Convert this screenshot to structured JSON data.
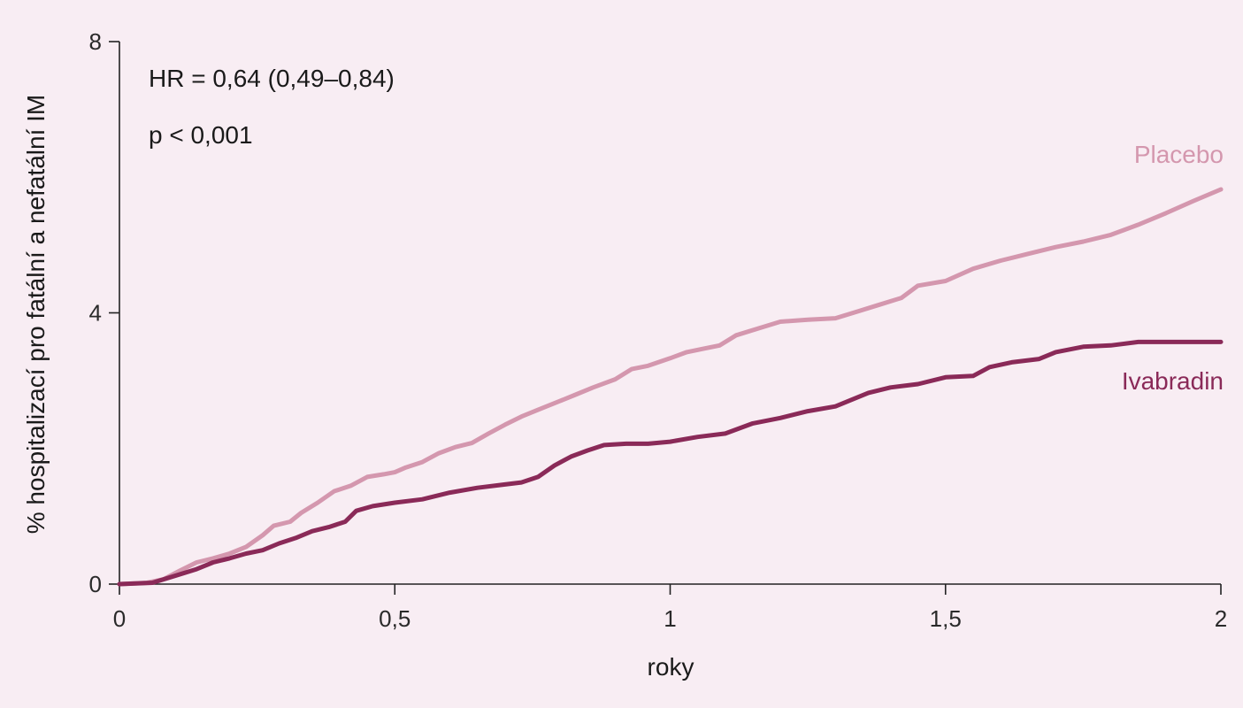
{
  "chart_data": {
    "type": "line",
    "xlabel": "roky",
    "ylabel": "% hospitalizací pro fatální a nefatální IM",
    "xlim": [
      0,
      2
    ],
    "ylim": [
      0,
      8
    ],
    "x_ticks": [
      {
        "value": 0,
        "label": "0"
      },
      {
        "value": 0.5,
        "label": "0,5"
      },
      {
        "value": 1,
        "label": "1"
      },
      {
        "value": 1.5,
        "label": "1,5"
      },
      {
        "value": 2,
        "label": "2"
      }
    ],
    "y_ticks": [
      {
        "value": 0,
        "label": "0"
      },
      {
        "value": 4,
        "label": "4"
      },
      {
        "value": 8,
        "label": "8"
      }
    ],
    "grid": false,
    "annotations": [
      "HR = 0,64 (0,49–0,84)",
      "p < 0,001"
    ],
    "series": [
      {
        "name": "Placebo",
        "color": "#d497ae",
        "points": [
          [
            0,
            0
          ],
          [
            0.05,
            0.02
          ],
          [
            0.08,
            0.07
          ],
          [
            0.11,
            0.2
          ],
          [
            0.14,
            0.32
          ],
          [
            0.17,
            0.38
          ],
          [
            0.2,
            0.45
          ],
          [
            0.23,
            0.55
          ],
          [
            0.26,
            0.72
          ],
          [
            0.28,
            0.86
          ],
          [
            0.31,
            0.92
          ],
          [
            0.33,
            1.05
          ],
          [
            0.36,
            1.2
          ],
          [
            0.39,
            1.37
          ],
          [
            0.42,
            1.45
          ],
          [
            0.45,
            1.58
          ],
          [
            0.48,
            1.62
          ],
          [
            0.5,
            1.65
          ],
          [
            0.52,
            1.72
          ],
          [
            0.55,
            1.8
          ],
          [
            0.58,
            1.93
          ],
          [
            0.61,
            2.02
          ],
          [
            0.64,
            2.08
          ],
          [
            0.67,
            2.22
          ],
          [
            0.7,
            2.35
          ],
          [
            0.73,
            2.47
          ],
          [
            0.76,
            2.57
          ],
          [
            0.8,
            2.7
          ],
          [
            0.83,
            2.8
          ],
          [
            0.86,
            2.9
          ],
          [
            0.9,
            3.02
          ],
          [
            0.93,
            3.17
          ],
          [
            0.96,
            3.22
          ],
          [
            1.0,
            3.33
          ],
          [
            1.03,
            3.42
          ],
          [
            1.06,
            3.47
          ],
          [
            1.09,
            3.52
          ],
          [
            1.12,
            3.67
          ],
          [
            1.16,
            3.77
          ],
          [
            1.2,
            3.87
          ],
          [
            1.25,
            3.9
          ],
          [
            1.3,
            3.92
          ],
          [
            1.34,
            4.02
          ],
          [
            1.38,
            4.12
          ],
          [
            1.42,
            4.22
          ],
          [
            1.45,
            4.4
          ],
          [
            1.5,
            4.47
          ],
          [
            1.55,
            4.65
          ],
          [
            1.6,
            4.77
          ],
          [
            1.65,
            4.87
          ],
          [
            1.7,
            4.97
          ],
          [
            1.75,
            5.05
          ],
          [
            1.8,
            5.15
          ],
          [
            1.85,
            5.3
          ],
          [
            1.9,
            5.47
          ],
          [
            1.95,
            5.65
          ],
          [
            2.0,
            5.82
          ]
        ]
      },
      {
        "name": "Ivabradin",
        "color": "#8a2a58",
        "points": [
          [
            0,
            0
          ],
          [
            0.06,
            0.02
          ],
          [
            0.1,
            0.12
          ],
          [
            0.14,
            0.22
          ],
          [
            0.17,
            0.32
          ],
          [
            0.2,
            0.38
          ],
          [
            0.23,
            0.45
          ],
          [
            0.26,
            0.5
          ],
          [
            0.29,
            0.6
          ],
          [
            0.32,
            0.68
          ],
          [
            0.35,
            0.78
          ],
          [
            0.38,
            0.84
          ],
          [
            0.41,
            0.92
          ],
          [
            0.43,
            1.08
          ],
          [
            0.46,
            1.15
          ],
          [
            0.5,
            1.2
          ],
          [
            0.55,
            1.25
          ],
          [
            0.6,
            1.35
          ],
          [
            0.65,
            1.42
          ],
          [
            0.7,
            1.47
          ],
          [
            0.73,
            1.5
          ],
          [
            0.76,
            1.58
          ],
          [
            0.79,
            1.75
          ],
          [
            0.82,
            1.88
          ],
          [
            0.85,
            1.97
          ],
          [
            0.88,
            2.05
          ],
          [
            0.92,
            2.07
          ],
          [
            0.96,
            2.07
          ],
          [
            1.0,
            2.1
          ],
          [
            1.05,
            2.17
          ],
          [
            1.1,
            2.22
          ],
          [
            1.15,
            2.37
          ],
          [
            1.2,
            2.45
          ],
          [
            1.25,
            2.55
          ],
          [
            1.3,
            2.62
          ],
          [
            1.33,
            2.72
          ],
          [
            1.36,
            2.82
          ],
          [
            1.4,
            2.9
          ],
          [
            1.45,
            2.95
          ],
          [
            1.5,
            3.05
          ],
          [
            1.55,
            3.07
          ],
          [
            1.58,
            3.2
          ],
          [
            1.62,
            3.27
          ],
          [
            1.67,
            3.32
          ],
          [
            1.7,
            3.42
          ],
          [
            1.75,
            3.5
          ],
          [
            1.8,
            3.52
          ],
          [
            1.85,
            3.57
          ],
          [
            1.9,
            3.57
          ],
          [
            1.95,
            3.57
          ],
          [
            2.0,
            3.57
          ]
        ]
      }
    ]
  }
}
